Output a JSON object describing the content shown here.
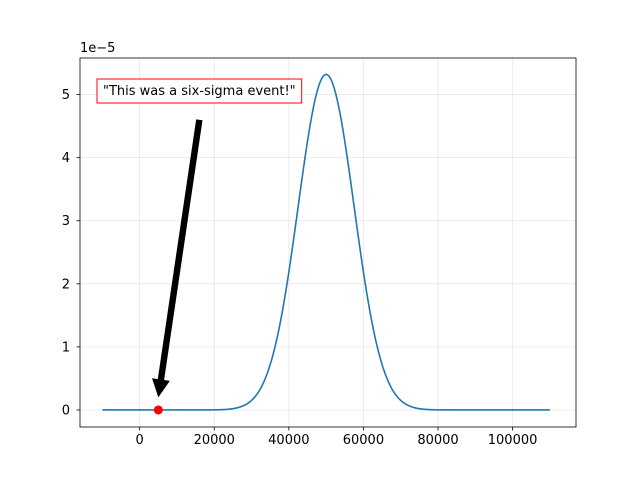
{
  "chart_data": {
    "type": "line",
    "title": "",
    "xlabel": "",
    "ylabel": "",
    "xlim": [
      -16000,
      117000
    ],
    "ylim": [
      -0.27,
      5.58
    ],
    "y_scale_label": "1e−5",
    "xticks": [
      0,
      20000,
      40000,
      60000,
      80000,
      100000
    ],
    "xtick_labels": [
      "0",
      "20000",
      "40000",
      "60000",
      "80000",
      "100000"
    ],
    "yticks": [
      0,
      1,
      2,
      3,
      4,
      5
    ],
    "ytick_labels": [
      "0",
      "1",
      "2",
      "3",
      "4",
      "5"
    ],
    "grid": true,
    "series": [
      {
        "color": "#1f77b4",
        "distribution": "normal",
        "mean": 50000,
        "std": 7500,
        "x_range": [
          -10000,
          110000
        ]
      }
    ],
    "highlight_point": {
      "x": 5000,
      "y": 0,
      "color": "#ff0000"
    },
    "annotation": {
      "text": "\"This was a six-sigma event!\"",
      "box_edge_color": "#ff0000",
      "arrow_color": "#000000",
      "arrow_tail": {
        "x": 16000,
        "y": 4.6
      },
      "arrow_head": {
        "x": 5000,
        "y": 0.2
      }
    }
  }
}
